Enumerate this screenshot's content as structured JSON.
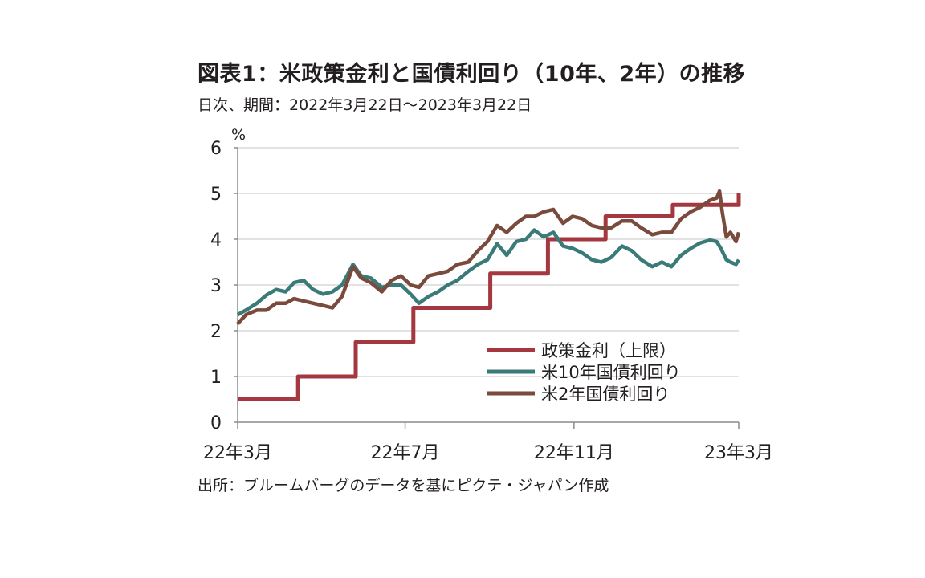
{
  "header": {
    "title": "図表1：米政策金利と国債利回り（10年、2年）の推移",
    "subtitle": "日次、期間：2022年3月22日～2023年3月22日"
  },
  "footer": {
    "source": "出所：ブルームバーグのデータを基にピクテ・ジャパン作成"
  },
  "chart_data": {
    "type": "line",
    "unit_label": "%",
    "ylim": [
      0,
      6
    ],
    "yticks": [
      "0",
      "1",
      "2",
      "3",
      "4",
      "5",
      "6"
    ],
    "xlim": [
      "2022-03-22",
      "2023-03-22"
    ],
    "xticks": [
      {
        "date": "2022-03-22",
        "label": "22年3月"
      },
      {
        "date": "2022-07-22",
        "label": "22年7月"
      },
      {
        "date": "2022-11-22",
        "label": "22年11月"
      },
      {
        "date": "2023-03-22",
        "label": "23年3月"
      }
    ],
    "grid": true,
    "legend_position": "bottom-right",
    "series": [
      {
        "name": "政策金利（上限）",
        "color": "#a4373f",
        "step": true,
        "points": [
          [
            "2022-03-22",
            0.5
          ],
          [
            "2022-05-05",
            1.0
          ],
          [
            "2022-06-16",
            1.75
          ],
          [
            "2022-07-28",
            2.5
          ],
          [
            "2022-09-22",
            3.25
          ],
          [
            "2022-11-03",
            4.0
          ],
          [
            "2022-12-15",
            4.5
          ],
          [
            "2023-02-02",
            4.75
          ],
          [
            "2023-03-22",
            5.0
          ]
        ]
      },
      {
        "name": "米10年国債利回り",
        "color": "#3a7a79",
        "points": [
          [
            "2022-03-22",
            2.35
          ],
          [
            "2022-03-28",
            2.45
          ],
          [
            "2022-04-05",
            2.6
          ],
          [
            "2022-04-12",
            2.78
          ],
          [
            "2022-04-19",
            2.9
          ],
          [
            "2022-04-26",
            2.85
          ],
          [
            "2022-05-02",
            3.05
          ],
          [
            "2022-05-09",
            3.1
          ],
          [
            "2022-05-16",
            2.9
          ],
          [
            "2022-05-23",
            2.8
          ],
          [
            "2022-05-30",
            2.85
          ],
          [
            "2022-06-06",
            3.0
          ],
          [
            "2022-06-14",
            3.45
          ],
          [
            "2022-06-20",
            3.2
          ],
          [
            "2022-06-27",
            3.15
          ],
          [
            "2022-07-05",
            2.95
          ],
          [
            "2022-07-12",
            3.0
          ],
          [
            "2022-07-19",
            3.0
          ],
          [
            "2022-07-26",
            2.8
          ],
          [
            "2022-08-01",
            2.6
          ],
          [
            "2022-08-08",
            2.75
          ],
          [
            "2022-08-15",
            2.85
          ],
          [
            "2022-08-22",
            3.0
          ],
          [
            "2022-08-29",
            3.1
          ],
          [
            "2022-09-06",
            3.3
          ],
          [
            "2022-09-13",
            3.45
          ],
          [
            "2022-09-20",
            3.55
          ],
          [
            "2022-09-27",
            3.9
          ],
          [
            "2022-10-04",
            3.65
          ],
          [
            "2022-10-11",
            3.95
          ],
          [
            "2022-10-18",
            4.0
          ],
          [
            "2022-10-24",
            4.2
          ],
          [
            "2022-10-31",
            4.05
          ],
          [
            "2022-11-07",
            4.15
          ],
          [
            "2022-11-14",
            3.85
          ],
          [
            "2022-11-21",
            3.8
          ],
          [
            "2022-11-28",
            3.7
          ],
          [
            "2022-12-05",
            3.55
          ],
          [
            "2022-12-12",
            3.5
          ],
          [
            "2022-12-19",
            3.6
          ],
          [
            "2022-12-27",
            3.85
          ],
          [
            "2023-01-03",
            3.75
          ],
          [
            "2023-01-10",
            3.55
          ],
          [
            "2023-01-18",
            3.4
          ],
          [
            "2023-01-25",
            3.5
          ],
          [
            "2023-02-01",
            3.4
          ],
          [
            "2023-02-08",
            3.65
          ],
          [
            "2023-02-15",
            3.8
          ],
          [
            "2023-02-22",
            3.92
          ],
          [
            "2023-03-01",
            3.98
          ],
          [
            "2023-03-06",
            3.95
          ],
          [
            "2023-03-09",
            3.8
          ],
          [
            "2023-03-13",
            3.55
          ],
          [
            "2023-03-16",
            3.5
          ],
          [
            "2023-03-20",
            3.45
          ],
          [
            "2023-03-22",
            3.55
          ]
        ]
      },
      {
        "name": "米2年国債利回り",
        "color": "#7a4a3c",
        "points": [
          [
            "2022-03-22",
            2.15
          ],
          [
            "2022-03-28",
            2.35
          ],
          [
            "2022-04-05",
            2.45
          ],
          [
            "2022-04-12",
            2.45
          ],
          [
            "2022-04-19",
            2.6
          ],
          [
            "2022-04-26",
            2.6
          ],
          [
            "2022-05-02",
            2.7
          ],
          [
            "2022-05-09",
            2.65
          ],
          [
            "2022-05-16",
            2.6
          ],
          [
            "2022-05-23",
            2.55
          ],
          [
            "2022-05-30",
            2.5
          ],
          [
            "2022-06-06",
            2.75
          ],
          [
            "2022-06-14",
            3.4
          ],
          [
            "2022-06-20",
            3.15
          ],
          [
            "2022-06-27",
            3.05
          ],
          [
            "2022-07-05",
            2.85
          ],
          [
            "2022-07-12",
            3.1
          ],
          [
            "2022-07-19",
            3.2
          ],
          [
            "2022-07-26",
            3.0
          ],
          [
            "2022-08-01",
            2.95
          ],
          [
            "2022-08-08",
            3.2
          ],
          [
            "2022-08-15",
            3.25
          ],
          [
            "2022-08-22",
            3.3
          ],
          [
            "2022-08-29",
            3.45
          ],
          [
            "2022-09-06",
            3.5
          ],
          [
            "2022-09-13",
            3.75
          ],
          [
            "2022-09-20",
            3.95
          ],
          [
            "2022-09-27",
            4.3
          ],
          [
            "2022-10-04",
            4.15
          ],
          [
            "2022-10-11",
            4.35
          ],
          [
            "2022-10-18",
            4.5
          ],
          [
            "2022-10-24",
            4.5
          ],
          [
            "2022-10-31",
            4.6
          ],
          [
            "2022-11-07",
            4.65
          ],
          [
            "2022-11-14",
            4.35
          ],
          [
            "2022-11-21",
            4.5
          ],
          [
            "2022-11-28",
            4.45
          ],
          [
            "2022-12-05",
            4.3
          ],
          [
            "2022-12-12",
            4.25
          ],
          [
            "2022-12-19",
            4.25
          ],
          [
            "2022-12-27",
            4.4
          ],
          [
            "2023-01-03",
            4.4
          ],
          [
            "2023-01-10",
            4.25
          ],
          [
            "2023-01-18",
            4.1
          ],
          [
            "2023-01-25",
            4.15
          ],
          [
            "2023-02-01",
            4.15
          ],
          [
            "2023-02-08",
            4.45
          ],
          [
            "2023-02-15",
            4.6
          ],
          [
            "2023-02-22",
            4.7
          ],
          [
            "2023-03-01",
            4.85
          ],
          [
            "2023-03-06",
            4.9
          ],
          [
            "2023-03-08",
            5.05
          ],
          [
            "2023-03-10",
            4.6
          ],
          [
            "2023-03-13",
            4.05
          ],
          [
            "2023-03-16",
            4.15
          ],
          [
            "2023-03-20",
            3.95
          ],
          [
            "2023-03-22",
            4.15
          ]
        ]
      }
    ]
  }
}
